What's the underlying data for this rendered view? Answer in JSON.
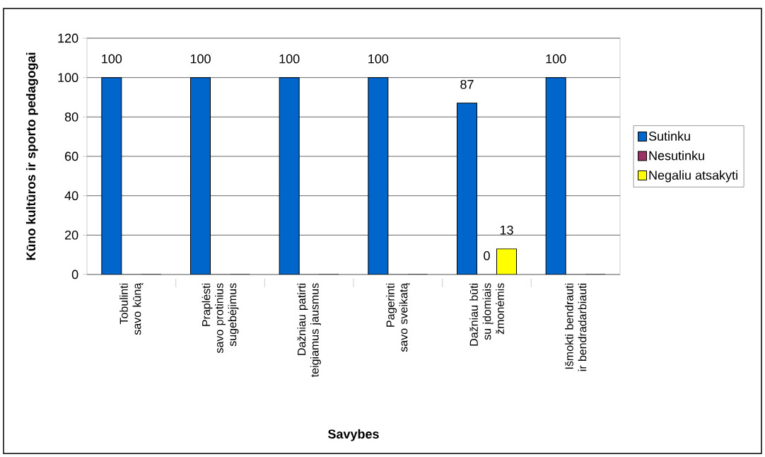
{
  "chart_data": {
    "type": "bar",
    "xlabel": "Savybes",
    "ylabel": "Kūno kultūros ir sporto pedagogai",
    "categories": [
      "Tobulinti savo kūną",
      "Praplėsti savo protinius sugebėjimus",
      "Dažniau patirti teigiamus jausmus",
      "Pagerinti savo sveikatą",
      "Dažniau būti su įdomiais žmonėmis",
      "Išmokti bendrauti ir bendradarbiauti"
    ],
    "series": [
      {
        "name": "Sutinku",
        "color": "#0066cc",
        "values": [
          100,
          100,
          100,
          100,
          87,
          100
        ],
        "value_labels": [
          "100",
          "100",
          "100",
          "100",
          "87",
          "100"
        ]
      },
      {
        "name": "Nesutinku",
        "color": "#993366",
        "values": [
          0,
          0,
          0,
          0,
          0,
          0
        ],
        "value_labels": [
          null,
          null,
          null,
          null,
          "0",
          null
        ]
      },
      {
        "name": "Negaliu atsakyti",
        "color": "#ffff00",
        "values": [
          0,
          0,
          0,
          0,
          13,
          0
        ],
        "value_labels": [
          null,
          null,
          null,
          null,
          "13",
          null
        ]
      }
    ],
    "ylim": [
      0,
      120
    ],
    "yticks": [
      0,
      20,
      40,
      60,
      80,
      100,
      120
    ],
    "grid": "y",
    "legend": "right"
  }
}
